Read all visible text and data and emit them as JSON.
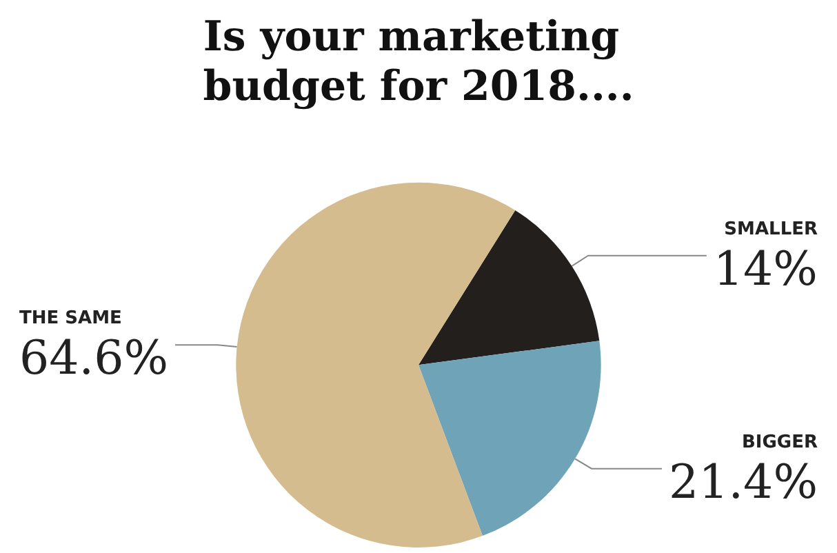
{
  "chart_data": {
    "type": "pie",
    "title": "Is your marketing budget for 2018....",
    "categories": [
      "SMALLER",
      "BIGGER",
      "THE SAME"
    ],
    "values": [
      14,
      21.4,
      64.6
    ],
    "value_labels": [
      "14%",
      "21.4%",
      "64.6%"
    ],
    "colors": [
      "#231f1c",
      "#6fa3b8",
      "#d4bc8e"
    ],
    "legend": false
  }
}
